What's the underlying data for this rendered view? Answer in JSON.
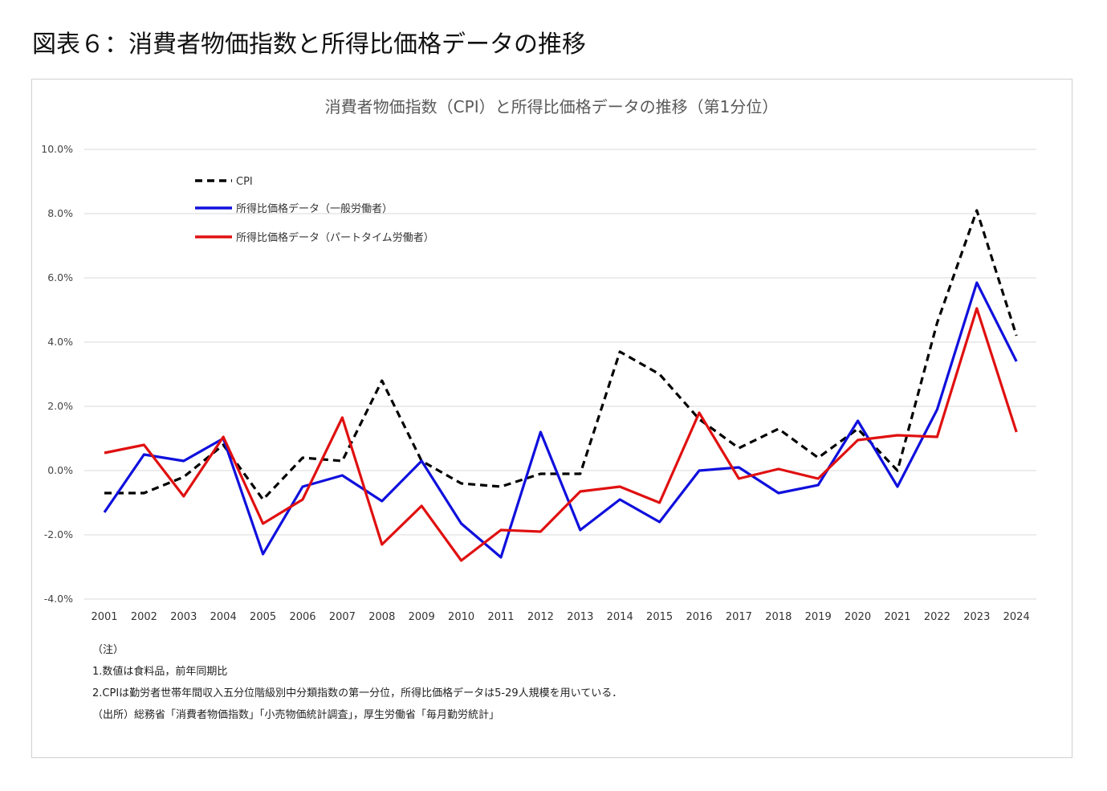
{
  "figure_title": "図表６：消費者物価指数と所得比価格データの推移",
  "notes": [
    "（注）",
    "1.数値は食料品，前年同期比",
    "2.CPIは勤労者世帯年間収入五分位階級別中分類指数の第一分位，所得比価格データは5-29人規模を用いている．",
    "（出所）総務省「消費者物価指数」「小売物価統計調査」，厚生労働省「毎月勤労統計」"
  ],
  "chart_data": {
    "type": "line",
    "title": "消費者物価指数（CPI）と所得比価格データの推移（第1分位）",
    "xlabel": "",
    "ylabel": "",
    "categories": [
      "2001",
      "2002",
      "2003",
      "2004",
      "2005",
      "2006",
      "2007",
      "2008",
      "2009",
      "2010",
      "2011",
      "2012",
      "2013",
      "2014",
      "2015",
      "2016",
      "2017",
      "2018",
      "2019",
      "2020",
      "2021",
      "2022",
      "2023",
      "2024"
    ],
    "ylim": [
      -4.0,
      10.0
    ],
    "yticks": [
      -4.0,
      -2.0,
      0.0,
      2.0,
      4.0,
      6.0,
      8.0,
      10.0
    ],
    "ytick_labels": [
      "-4.0%",
      "-2.0%",
      "0.0%",
      "2.0%",
      "4.0%",
      "6.0%",
      "8.0%",
      "10.0%"
    ],
    "grid": true,
    "legend_position": "top-left",
    "series": [
      {
        "name": "CPI",
        "color": "#000000",
        "dashed": true,
        "values": [
          -0.7,
          -0.7,
          -0.2,
          0.8,
          -0.9,
          0.4,
          0.3,
          2.8,
          0.3,
          -0.4,
          -0.5,
          -0.1,
          -0.1,
          3.7,
          3.0,
          1.6,
          0.7,
          1.3,
          0.4,
          1.3,
          0.0,
          4.6,
          8.1,
          4.2
        ]
      },
      {
        "name": "所得比価格データ（一般労働者）",
        "color": "#1010dd",
        "dashed": false,
        "values": [
          -1.3,
          0.5,
          0.3,
          1.0,
          -2.6,
          -0.5,
          -0.15,
          -0.95,
          0.3,
          -1.65,
          -2.7,
          1.2,
          -1.85,
          -0.9,
          -1.6,
          0.0,
          0.1,
          -0.7,
          -0.45,
          1.55,
          -0.5,
          1.9,
          5.85,
          3.4
        ]
      },
      {
        "name": "所得比価格データ（パートタイム労働者）",
        "color": "#e01010",
        "dashed": false,
        "values": [
          0.55,
          0.8,
          -0.8,
          1.05,
          -1.65,
          -0.9,
          1.65,
          -2.3,
          -1.1,
          -2.8,
          -1.85,
          -1.9,
          -0.65,
          -0.5,
          -1.0,
          1.8,
          -0.25,
          0.05,
          -0.25,
          0.95,
          1.1,
          1.05,
          5.05,
          1.2
        ]
      }
    ]
  }
}
